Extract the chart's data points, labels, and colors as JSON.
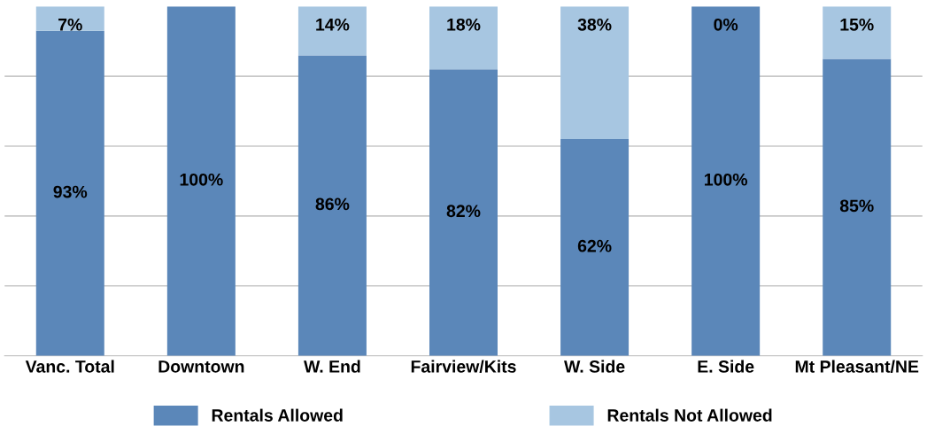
{
  "chart_data": {
    "type": "bar",
    "stacked": true,
    "categories": [
      "Vanc. Total",
      "Downtown",
      "W. End",
      "Fairview/Kits",
      "W. Side",
      "E. Side",
      "Mt Pleasant/NE"
    ],
    "series": [
      {
        "name": "Rentals Allowed",
        "color": "#5b87b9",
        "values": [
          93,
          100,
          86,
          82,
          62,
          100,
          85
        ],
        "value_labels": [
          "93%",
          "100%",
          "86%",
          "82%",
          "62%",
          "100%",
          "85%"
        ]
      },
      {
        "name": "Rentals Not Allowed",
        "color": "#a7c6e1",
        "values": [
          7,
          0,
          14,
          18,
          38,
          0,
          15
        ],
        "value_labels": [
          "7%",
          null,
          "14%",
          "18%",
          "38%",
          "0%",
          "15%"
        ]
      }
    ],
    "ylim": [
      0,
      100
    ],
    "yticks": [
      {
        "value": 20,
        "label": null
      },
      {
        "value": 40,
        "label": null
      },
      {
        "value": 60,
        "label": null
      },
      {
        "value": 80,
        "label": null
      }
    ],
    "grid": "y",
    "legend": "bottom",
    "tick_labels": "x"
  }
}
